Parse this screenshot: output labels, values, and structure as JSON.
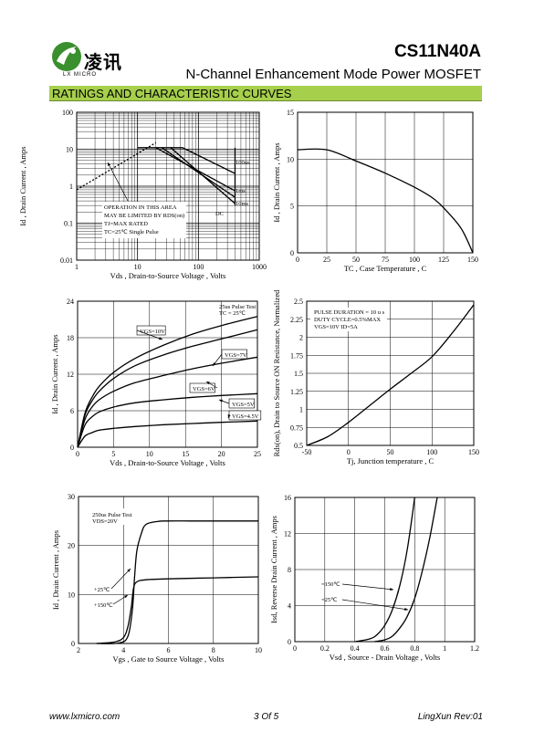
{
  "header": {
    "logo_text_cn": "凌讯",
    "logo_text_en": "LX MICRO",
    "part_number": "CS11N40A",
    "subtitle": "N-Channel Enhancement Mode Power MOSFET",
    "section_title": "RATINGS AND CHARACTERISTIC CURVES"
  },
  "footer": {
    "url": "www.lxmicro.com",
    "page": "3 Of 5",
    "rev": "LingXun   Rev:01"
  },
  "colors": {
    "section_bar": "#a6cf4b",
    "curve": "#000000"
  },
  "chart_data": [
    {
      "type": "line",
      "name": "soa",
      "xlabel": "Vds , Drain-to-Source Voltage , Volts",
      "ylabel": "Id , Drain Current , Amps",
      "xscale": "log",
      "yscale": "log",
      "xlim": [
        1,
        1000
      ],
      "ylim": [
        0.01,
        100
      ],
      "xticks": [
        "1",
        "10",
        "100",
        "1000"
      ],
      "yticks": [
        "100",
        "10",
        "1",
        "0.1",
        "0.01"
      ],
      "annotations": [
        "100us",
        "1ms",
        "10ms",
        "DC",
        "OPERATION IN THIS AREA",
        "MAY BE LIMITED BY RDS(on)",
        "TJ=MAX RATED",
        "TC=25℃  Single Pulse"
      ],
      "series": [
        {
          "label": "limit",
          "x": [
            1,
            20
          ],
          "y": [
            0.8,
            15
          ]
        },
        {
          "label": "100us",
          "x": [
            10,
            55,
            400
          ],
          "y": [
            11,
            11,
            2.2
          ]
        },
        {
          "label": "1ms",
          "x": [
            20,
            400
          ],
          "y": [
            11,
            0.75
          ]
        },
        {
          "label": "10ms",
          "x": [
            25,
            400
          ],
          "y": [
            11,
            0.5
          ]
        },
        {
          "label": "DC",
          "x": [
            35,
            400
          ],
          "y": [
            11,
            0.34
          ]
        }
      ]
    },
    {
      "type": "line",
      "name": "derating",
      "xlabel": "TC , Case Temperature , C",
      "ylabel": "Id , Drain Current , Amps",
      "xlim": [
        0,
        150
      ],
      "ylim": [
        0,
        15
      ],
      "xticks": [
        "0",
        "25",
        "50",
        "75",
        "100",
        "125",
        "150"
      ],
      "yticks": [
        "15",
        "10",
        "5",
        "0"
      ],
      "x": [
        0,
        25,
        50,
        75,
        100,
        115,
        125,
        140,
        150
      ],
      "y": [
        11,
        11,
        9.8,
        8.5,
        7.0,
        5.9,
        4.8,
        2.6,
        0
      ]
    },
    {
      "type": "line",
      "name": "output",
      "xlabel": "Vds , Drain-to-Source Voltage , Volts",
      "ylabel": "Id , Drain Current , Amps",
      "xlim": [
        0,
        25
      ],
      "ylim": [
        0,
        24
      ],
      "xticks": [
        "0",
        "5",
        "10",
        "15",
        "20",
        "25"
      ],
      "yticks": [
        "24",
        "18",
        "12",
        "6",
        "0"
      ],
      "annotations": [
        "25us Pulse Test",
        "TC = 25℃"
      ],
      "x": [
        0,
        1,
        2,
        3,
        5,
        8,
        12,
        16,
        20,
        25
      ],
      "series": [
        {
          "name": "VGS=10V",
          "values": [
            0,
            5.5,
            8.2,
            10,
            12.3,
            14.6,
            16.8,
            18.6,
            20,
            21.5
          ]
        },
        {
          "name": "VGS=7V",
          "values": [
            0,
            5.2,
            7.6,
            9.2,
            11.3,
            13.4,
            15.2,
            16.6,
            17.8,
            19.3
          ]
        },
        {
          "name": "VGS=6V",
          "values": [
            0,
            4.5,
            6.6,
            7.8,
            9.2,
            10.6,
            11.8,
            12.9,
            13.8,
            14.8
          ]
        },
        {
          "name": "VGS=5V",
          "values": [
            0,
            3.6,
            5.0,
            5.8,
            6.6,
            7.3,
            7.8,
            8.2,
            8.5,
            8.8
          ]
        },
        {
          "name": "VGS=4.5V",
          "values": [
            0,
            1.8,
            2.4,
            2.8,
            3.1,
            3.4,
            3.7,
            3.9,
            4.1,
            4.3
          ]
        }
      ]
    },
    {
      "type": "line",
      "name": "rdson",
      "xlabel": "Tj, Junction temperature , C",
      "ylabel": "Rds(on), Drain to Source ON  Resistance, Normalized",
      "xlim": [
        -50,
        150
      ],
      "ylim": [
        0.5,
        2.5
      ],
      "xticks": [
        "-50",
        "0",
        "50",
        "100",
        "150"
      ],
      "yticks": [
        "2.5",
        "2.25",
        "2",
        "1.75",
        "1.5",
        "1.25",
        "1",
        "0.75",
        "0.5"
      ],
      "annotations": [
        "PULSE   DURATION = 10 u s",
        "DUTY   CYCLE=0.5%MAX",
        "VGS=10V    ID=5A"
      ],
      "x": [
        -50,
        -25,
        0,
        25,
        50,
        75,
        100,
        125,
        150
      ],
      "y": [
        0.5,
        0.62,
        0.82,
        1.05,
        1.28,
        1.5,
        1.73,
        2.07,
        2.45
      ]
    },
    {
      "type": "line",
      "name": "transfer",
      "xlabel": "Vgs , Gate to Source Voltage , Volts",
      "ylabel": "Id , Drain Current , Amps",
      "xlim": [
        2,
        10
      ],
      "ylim": [
        0,
        30
      ],
      "xticks": [
        "2",
        "4",
        "6",
        "8",
        "10"
      ],
      "yticks": [
        "30",
        "20",
        "10",
        "0"
      ],
      "annotations": [
        "250us Pulse Test",
        "VDS=20V"
      ],
      "series": [
        {
          "name": "+25℃",
          "x": [
            2.8,
            3.8,
            4.2,
            4.4,
            4.5,
            4.6,
            4.8,
            5.0,
            5.5,
            6,
            7,
            8,
            10
          ],
          "values": [
            0,
            0.1,
            1.5,
            7,
            14,
            19,
            22.5,
            24.3,
            24.9,
            25,
            25,
            25,
            25
          ]
        },
        {
          "name": "+150℃",
          "x": [
            2.8,
            3.6,
            4.0,
            4.2,
            4.35,
            4.45,
            4.6,
            5,
            6,
            8,
            10
          ],
          "values": [
            0,
            0.3,
            1.2,
            3.5,
            7.5,
            11.3,
            12.6,
            13,
            13.2,
            13.4,
            13.6
          ]
        }
      ]
    },
    {
      "type": "line",
      "name": "diode",
      "xlabel": "Vsd , Source - Drain Voltage , Volts",
      "ylabel": "Isd, Reverse Drain Current , Amps",
      "xlim": [
        0,
        1.2
      ],
      "ylim": [
        0,
        16
      ],
      "xticks": [
        "0",
        "0.2",
        "0.4",
        "0.6",
        "0.8",
        "1",
        "1.2"
      ],
      "yticks": [
        "16",
        "12",
        "8",
        "4",
        "0"
      ],
      "series": [
        {
          "name": "=150℃",
          "x": [
            0.4,
            0.5,
            0.55,
            0.6,
            0.65,
            0.7,
            0.75,
            0.8
          ],
          "values": [
            0,
            0.3,
            0.8,
            1.8,
            3.5,
            6.2,
            10.2,
            16
          ]
        },
        {
          "name": "=25℃",
          "x": [
            0.53,
            0.6,
            0.65,
            0.7,
            0.75,
            0.8,
            0.85,
            0.9,
            0.95
          ],
          "values": [
            0,
            0.2,
            0.6,
            1.5,
            2.8,
            4.8,
            7.8,
            11.5,
            16
          ]
        }
      ]
    }
  ]
}
